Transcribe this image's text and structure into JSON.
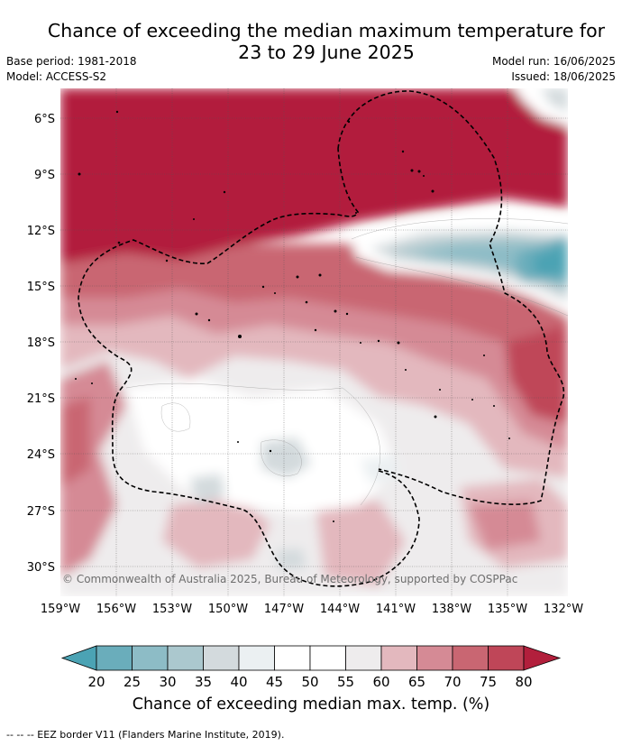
{
  "title_line1": "Chance of exceeding the median maximum temperature for",
  "title_line2": "23 to 29 June 2025",
  "base_period": "Base period: 1981-2018",
  "model": "Model: ACCESS-S2",
  "model_run": "Model run: 16/06/2025",
  "issued": "Issued: 18/06/2025",
  "copyright": "© Commonwealth of Australia 2025, Bureau of Meteorology, supported by COSPPac",
  "colorbar_label": "Chance of exceeding median max. temp. (%)",
  "footnote": "--  --  -- EEZ border V11 (Flanders Marine Institute, 2019).",
  "lat_labels": [
    "6°S",
    "9°S",
    "12°S",
    "15°S",
    "18°S",
    "21°S",
    "24°S",
    "27°S",
    "30°S"
  ],
  "lon_labels": [
    "159°W",
    "156°W",
    "153°W",
    "150°W",
    "147°W",
    "144°W",
    "141°W",
    "138°W",
    "135°W",
    "132°W"
  ],
  "colorbar": {
    "ticks": [
      "20",
      "25",
      "30",
      "35",
      "40",
      "45",
      "50",
      "55",
      "60",
      "65",
      "70",
      "75",
      "80"
    ],
    "colors": [
      "#4ba3b4",
      "#6aadbb",
      "#8dbcc6",
      "#abc8ce",
      "#d3dadd",
      "#ebf0f2",
      "#ffffff",
      "#ffffff",
      "#eeeced",
      "#e3b8be",
      "#d58a95",
      "#c96672",
      "#bf4658",
      "#b21f3c"
    ]
  }
}
